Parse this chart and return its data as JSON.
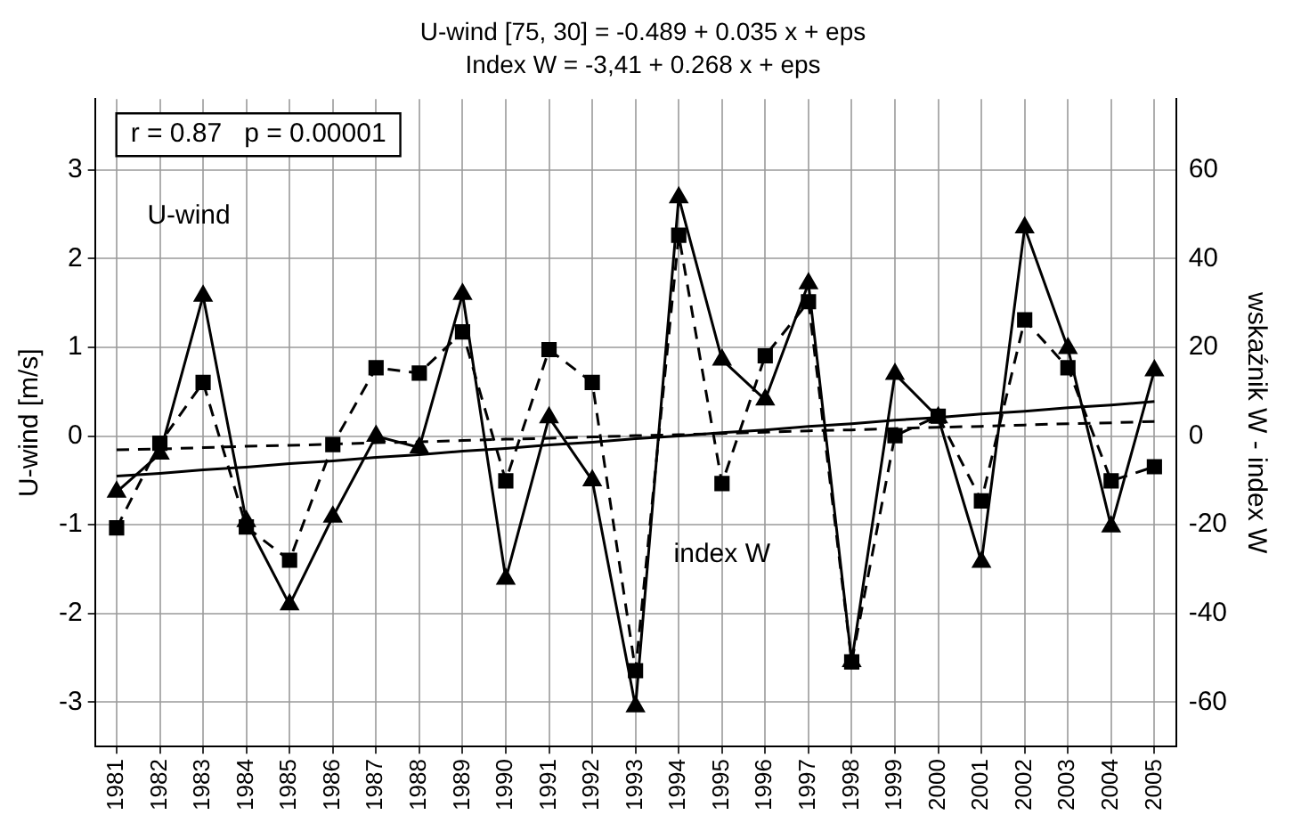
{
  "chart_data": {
    "type": "line",
    "title": "U-wind [75, 30] = -0.489 + 0.035 x + eps",
    "subtitle": "Index W = -3,41 + 0.268 x + eps",
    "ylabel": "U-wind [m/s]",
    "y2label": "wskaźnik W - index W",
    "categories": [
      "1981",
      "1982",
      "1983",
      "1984",
      "1985",
      "1986",
      "1987",
      "1988",
      "1989",
      "1990",
      "1991",
      "1992",
      "1993",
      "1994",
      "1995",
      "1996",
      "1997",
      "1998",
      "1999",
      "2000",
      "2001",
      "2002",
      "2003",
      "2004",
      "2005"
    ],
    "series": [
      {
        "name": "U-wind",
        "color": "#000000",
        "marker": "triangle",
        "line_style": "solid",
        "values": [
          -0.63,
          -0.2,
          1.58,
          -0.96,
          -1.9,
          -0.91,
          0.0,
          -0.13,
          1.6,
          -1.61,
          0.21,
          -0.5,
          -3.05,
          2.69,
          0.86,
          0.41,
          1.72,
          -2.54,
          0.7,
          0.21,
          -1.42,
          2.35,
          0.99,
          -1.02,
          0.74
        ]
      },
      {
        "name": "index W",
        "color": "#000000",
        "marker": "square",
        "line_style": "dashed",
        "axis": "y2",
        "values": [
          -20.7,
          -1.6,
          12.1,
          -20.5,
          -28,
          -1.9,
          15.4,
          14.2,
          23.5,
          -10.1,
          19.5,
          12.1,
          -52.9,
          45.3,
          -10.7,
          18.1,
          30.3,
          -50.9,
          0.1,
          4.5,
          -14.6,
          26.2,
          15.4,
          -10.1,
          -6.9
        ]
      },
      {
        "type": "line",
        "color": "#000000",
        "marker": "none",
        "line_style": "solid",
        "values": [
          -0.45,
          -0.42,
          -0.38,
          -0.35,
          -0.31,
          -0.28,
          -0.24,
          -0.21,
          -0.17,
          -0.14,
          -0.1,
          -0.07,
          -0.03,
          0,
          0.04,
          0.07,
          0.11,
          0.14,
          0.18,
          0.21,
          0.25,
          0.28,
          0.32,
          0.35,
          0.39
        ]
      },
      {
        "type": "line",
        "color": "#000000",
        "marker": "none",
        "line_style": "dashed",
        "axis": "y2",
        "values": [
          -3.1,
          -2.9,
          -2.6,
          -2.3,
          -2.1,
          -1.8,
          -1.5,
          -1.3,
          -1,
          -0.7,
          -0.5,
          -0.2,
          0.1,
          0.3,
          0.6,
          0.9,
          1.2,
          1.4,
          1.7,
          2,
          2.2,
          2.5,
          2.8,
          3,
          3.3
        ]
      }
    ],
    "ylim": [
      -3.5,
      3.8
    ],
    "yticks": [
      -3,
      -2,
      -1,
      0,
      1,
      2,
      3
    ],
    "y2lim": [
      -70,
      76
    ],
    "y2ticks": [
      -60,
      -40,
      -20,
      0,
      20,
      40,
      60
    ],
    "annotations": [
      "r = 0.87   p = 0.00001"
    ],
    "grid": true,
    "legend": false
  }
}
